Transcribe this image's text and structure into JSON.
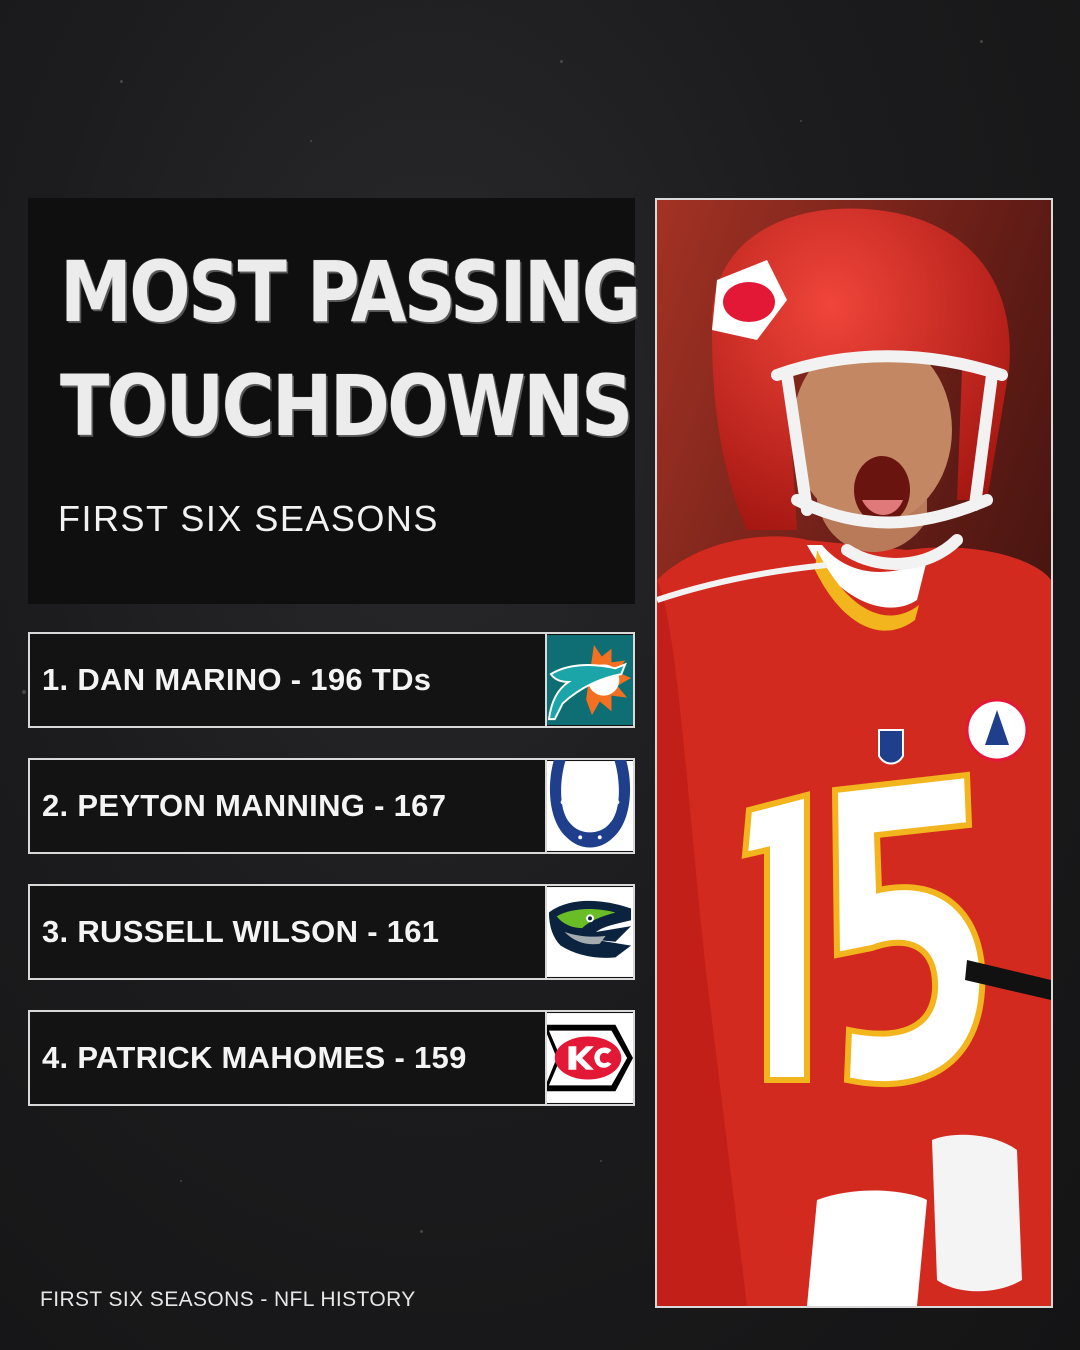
{
  "title": {
    "line1": "MOST PASSING",
    "line2": "TOUCHDOWNS",
    "subtitle": "FIRST SIX SEASONS"
  },
  "rankings": [
    {
      "text": "1. DAN MARINO - 196 TDs",
      "team_logo": "dolphins-logo-icon"
    },
    {
      "text": "2. PEYTON MANNING - 167",
      "team_logo": "colts-horseshoe-logo-icon"
    },
    {
      "text": "3. RUSSELL WILSON - 161",
      "team_logo": "seahawks-logo-icon"
    },
    {
      "text": "4. PATRICK MAHOMES - 159",
      "team_logo": "chiefs-arrowhead-logo-icon"
    }
  ],
  "footer": "FIRST SIX SEASONS - NFL HISTORY",
  "colors": {
    "background": "#1c1c1e",
    "panel": "#0f0f10",
    "border": "#d9d9d9",
    "chiefs_red": "#d6261f",
    "chiefs_gold": "#f2b51e",
    "dolphins_aqua": "#1ba5a8",
    "dolphins_orange": "#f37021",
    "colts_blue": "#1f3f8c",
    "seahawks_navy": "#0c2340",
    "seahawks_green": "#69be28"
  },
  "photo": {
    "subject": "player in red #15 jersey and red helmet celebrating",
    "jersey_number": "15"
  }
}
